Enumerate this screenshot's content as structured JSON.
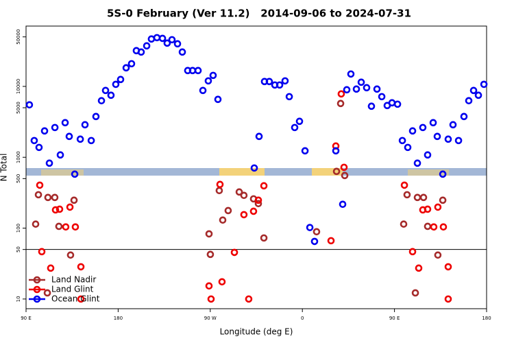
{
  "chart_data": {
    "type": "scatter",
    "title": "5S-0 February (Ver 11.2)   2014-09-06 to 2024-07-31",
    "x_label": "Longitude (deg E)",
    "y_label": "N Total",
    "xlim": [
      90,
      540
    ],
    "xticks": [
      {
        "value": 90,
        "label": "90 E"
      },
      180,
      {
        "value": 270,
        "label": "90 W"
      },
      {
        "value": 360,
        "label": "0"
      },
      {
        "value": 450,
        "label": "90 E"
      },
      {
        "value": 540,
        "label": "180"
      }
    ],
    "ylim": [
      7.3,
      71000
    ],
    "log_y": true,
    "yticks": [
      10,
      50,
      100,
      500,
      1000,
      5000,
      10000,
      50000
    ],
    "reference_line": 50,
    "legend": "bottom-left",
    "series": [
      {
        "name": "Land Nadir",
        "color": "#a52a2a",
        "x": [
          99.4,
          102.1,
          111.4,
          118.1,
          122.1,
          133.5,
          136.9,
          110.8,
          268.8,
          270.1,
          278.8,
          282.2,
          287.5,
          298.3,
          302.9,
          312.3,
          317.0,
          322.4,
          373.9,
          393.4,
          397.4,
          401.4,
          459.0,
          462.3,
          472.4,
          478.4,
          482.4,
          492.4,
          497.2,
          470.4
        ],
        "values": [
          114,
          296,
          271,
          271,
          106,
          41.7,
          248,
          12.2,
          83,
          42.6,
          339,
          130,
          177,
          324,
          290,
          259,
          222,
          72.7,
          89,
          632,
          5740,
          553,
          114,
          296,
          271,
          271,
          106,
          41.7,
          248,
          12.2
        ]
      },
      {
        "name": "Land Glint",
        "color": "#ee0000",
        "x": [
          103.4,
          105.4,
          114.1,
          118.8,
          122.8,
          128.8,
          132.9,
          138.2,
          143.6,
          143.6,
          459.7,
          467.7,
          473.7,
          477.7,
          482.4,
          488.4,
          492.4,
          497.8,
          502.5,
          502.5,
          268.8,
          270.8,
          279.5,
          281.5,
          293.6,
          302.9,
          307.6,
          312.3,
          317.0,
          322.4,
          388.0,
          392.7,
          398.0,
          400.7
        ],
        "values": [
          404,
          46.6,
          27.3,
          181,
          185,
          104,
          198,
          104,
          28.5,
          10,
          404,
          46.6,
          27.3,
          181,
          185,
          104,
          198,
          104,
          28.5,
          10,
          15.3,
          10,
          414,
          17.5,
          45.5,
          155,
          10,
          173,
          248,
          396,
          66.5,
          1442,
          7840,
          722
        ]
      },
      {
        "name": "Ocean Glint",
        "color": "#0000ee",
        "x": [
          93.3,
          98.0,
          102.7,
          108.1,
          112.8,
          118.2,
          123.5,
          128.2,
          132.2,
          137.6,
          143.0,
          147.6,
          153.7,
          158.3,
          163.7,
          167.7,
          173.0,
          177.7,
          182.4,
          187.8,
          193.1,
          197.8,
          202.5,
          207.9,
          212.5,
          217.9,
          223.3,
          227.9,
          232.6,
          238.0,
          242.7,
          248.0,
          252.7,
          258.1,
          262.8,
          268.1,
          272.8,
          277.5,
          313.0,
          317.7,
          323.0,
          327.7,
          333.1,
          337.8,
          343.1,
          347.2,
          352.5,
          357.2,
          362.6,
          367.3,
          371.9,
          392.7,
          399.4,
          403.4,
          407.4,
          412.8,
          417.5,
          422.8,
          427.5,
          432.9,
          437.6,
          442.9,
          447.6,
          453.0,
          457.7,
          463.0,
          467.7,
          472.4,
          477.7,
          482.4,
          487.8,
          491.8,
          497.2,
          502.5,
          507.2,
          512.6,
          517.9,
          522.6,
          527.3,
          532.0,
          537.4
        ],
        "values": [
          5495,
          1722,
          1378,
          2354,
          826,
          2630,
          1079,
          3076,
          1969,
          578,
          1801,
          2877,
          1722,
          3758,
          6281,
          8770,
          7500,
          10700,
          12530,
          18290,
          20900,
          31940,
          30550,
          37330,
          46650,
          48750,
          47650,
          40800,
          45600,
          39900,
          30550,
          16740,
          16740,
          16740,
          8770,
          11970,
          14310,
          6560,
          706,
          1969,
          11720,
          11720,
          10470,
          10470,
          11970,
          7170,
          2630,
          3216,
          1233,
          102,
          65,
          1233,
          217,
          8970,
          14960,
          9170,
          11460,
          9590,
          5250,
          9170,
          7170,
          5370,
          5870,
          5610,
          1722,
          1378,
          2354,
          826,
          2630,
          1079,
          3076,
          1969,
          578,
          1801,
          2877,
          1722,
          3758,
          6281,
          8770,
          7500,
          10700
        ]
      }
    ]
  }
}
